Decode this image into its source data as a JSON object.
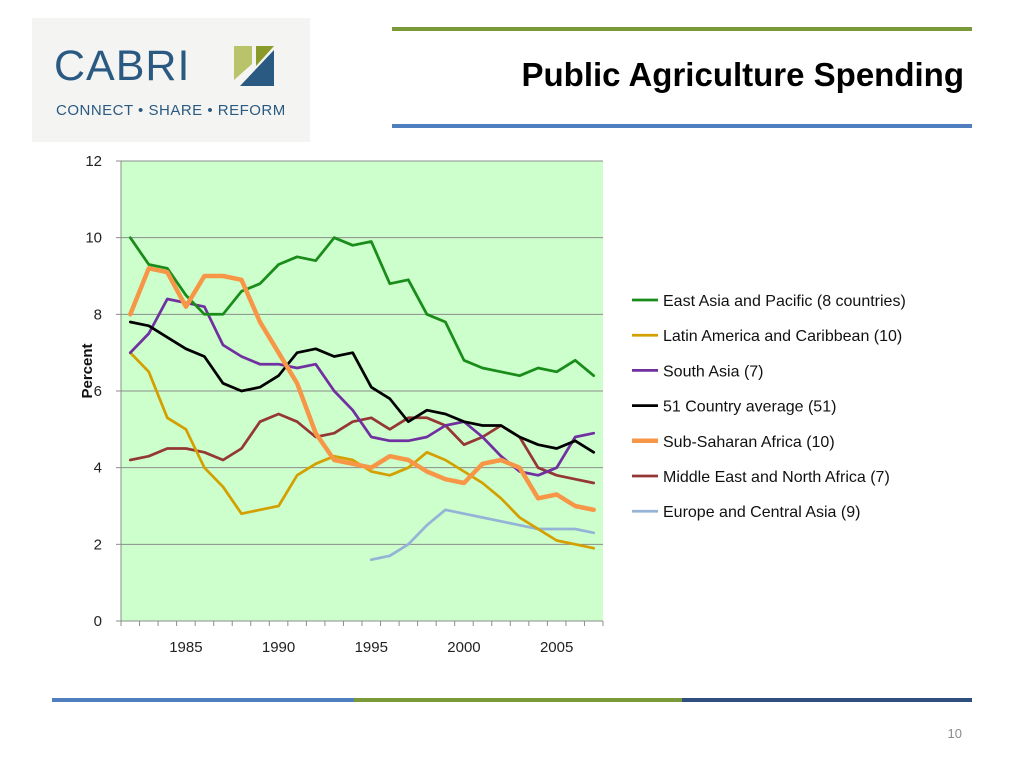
{
  "slide": {
    "title": "Public Agriculture Spending",
    "page_number": "10"
  },
  "logo": {
    "name": "CABRI",
    "tagline": "CONNECT • SHARE • REFORM"
  },
  "colors": {
    "top_rule_green": "#7a9a3a",
    "top_rule_blue": "#4f7fbf",
    "bottom_rule_blue": "#4f7fbf",
    "bottom_rule_green": "#7a9a3a",
    "bottom_rule_navy": "#2f4f7f",
    "plot_background": "#ccffcc"
  },
  "chart_data": {
    "type": "line",
    "ylabel": "Percent",
    "xlabel": "",
    "ylim": [
      0,
      12
    ],
    "xlim": [
      1982,
      2007
    ],
    "y_ticks": [
      "0",
      "2",
      "4",
      "6",
      "8",
      "10",
      "12"
    ],
    "x_ticks": [
      "1985",
      "1990",
      "1995",
      "2000",
      "2005"
    ],
    "grid": "horizontal",
    "legend_position": "right",
    "series": [
      {
        "name": "East Asia and Pacific (8 countries)",
        "color": "#1a8c1a",
        "x": [
          1982,
          1983,
          1984,
          1985,
          1986,
          1987,
          1988,
          1989,
          1990,
          1991,
          1992,
          1993,
          1994,
          1995,
          1996,
          1997,
          1998,
          1999,
          2000,
          2001,
          2002,
          2003,
          2004,
          2005,
          2006,
          2007
        ],
        "values": [
          10,
          9.3,
          9.2,
          8.5,
          8.0,
          8.0,
          8.6,
          8.8,
          9.3,
          9.5,
          9.4,
          10.0,
          9.8,
          9.9,
          8.8,
          8.9,
          8.0,
          7.8,
          6.8,
          6.6,
          6.5,
          6.4,
          6.6,
          6.5,
          6.8,
          6.4
        ]
      },
      {
        "name": "Latin America and Caribbean (10)",
        "color": "#d4a000",
        "x": [
          1982,
          1983,
          1984,
          1985,
          1986,
          1987,
          1988,
          1989,
          1990,
          1991,
          1992,
          1993,
          1994,
          1995,
          1996,
          1997,
          1998,
          1999,
          2000,
          2001,
          2002,
          2003,
          2004,
          2005,
          2006,
          2007
        ],
        "values": [
          7.0,
          6.5,
          5.3,
          5.0,
          4.0,
          3.5,
          2.8,
          2.9,
          3.0,
          3.8,
          4.1,
          4.3,
          4.2,
          3.9,
          3.8,
          4.0,
          4.4,
          4.2,
          3.9,
          3.6,
          3.2,
          2.7,
          2.4,
          2.1,
          2.0,
          1.9
        ]
      },
      {
        "name": "South Asia (7)",
        "color": "#7030a0",
        "x": [
          1982,
          1983,
          1984,
          1985,
          1986,
          1987,
          1988,
          1989,
          1990,
          1991,
          1992,
          1993,
          1994,
          1995,
          1996,
          1997,
          1998,
          1999,
          2000,
          2001,
          2002,
          2003,
          2004,
          2005,
          2006,
          2007
        ],
        "values": [
          7.0,
          7.5,
          8.4,
          8.3,
          8.2,
          7.2,
          6.9,
          6.7,
          6.7,
          6.6,
          6.7,
          6.0,
          5.5,
          4.8,
          4.7,
          4.7,
          4.8,
          5.1,
          5.2,
          4.8,
          4.3,
          3.9,
          3.8,
          4.0,
          4.8,
          4.9
        ]
      },
      {
        "name": "51 Country average (51)",
        "color": "#000000",
        "x": [
          1982,
          1983,
          1984,
          1985,
          1986,
          1987,
          1988,
          1989,
          1990,
          1991,
          1992,
          1993,
          1994,
          1995,
          1996,
          1997,
          1998,
          1999,
          2000,
          2001,
          2002,
          2003,
          2004,
          2005,
          2006,
          2007
        ],
        "values": [
          7.8,
          7.7,
          7.4,
          7.1,
          6.9,
          6.2,
          6.0,
          6.1,
          6.4,
          7.0,
          7.1,
          6.9,
          7.0,
          6.1,
          5.8,
          5.2,
          5.5,
          5.4,
          5.2,
          5.1,
          5.1,
          4.8,
          4.6,
          4.5,
          4.7,
          4.4
        ]
      },
      {
        "name": "Sub-Saharan Africa (10)",
        "color": "#f79646",
        "x": [
          1982,
          1983,
          1984,
          1985,
          1986,
          1987,
          1988,
          1989,
          1990,
          1991,
          1992,
          1993,
          1994,
          1995,
          1996,
          1997,
          1998,
          1999,
          2000,
          2001,
          2002,
          2003,
          2004,
          2005,
          2006,
          2007
        ],
        "values": [
          8.0,
          9.2,
          9.1,
          8.2,
          9.0,
          9.0,
          8.9,
          7.8,
          7.0,
          6.2,
          4.9,
          4.2,
          4.1,
          4.0,
          4.3,
          4.2,
          3.9,
          3.7,
          3.6,
          4.1,
          4.2,
          4.0,
          3.2,
          3.3,
          3.0,
          2.9
        ]
      },
      {
        "name": "Middle East and North Africa (7)",
        "color": "#953735",
        "x": [
          1982,
          1983,
          1984,
          1985,
          1986,
          1987,
          1988,
          1989,
          1990,
          1991,
          1992,
          1993,
          1994,
          1995,
          1996,
          1997,
          1998,
          1999,
          2000,
          2001,
          2002,
          2003,
          2004,
          2005,
          2006,
          2007
        ],
        "values": [
          4.2,
          4.3,
          4.5,
          4.5,
          4.4,
          4.2,
          4.5,
          5.2,
          5.4,
          5.2,
          4.8,
          4.9,
          5.2,
          5.3,
          5.0,
          5.3,
          5.3,
          5.1,
          4.6,
          4.8,
          5.1,
          4.8,
          4.0,
          3.8,
          3.7,
          3.6
        ]
      },
      {
        "name": "Europe and Central Asia (9)",
        "color": "#95b3d7",
        "x": [
          1995,
          1996,
          1997,
          1998,
          1999,
          2000,
          2001,
          2002,
          2003,
          2004,
          2005,
          2006,
          2007
        ],
        "values": [
          1.6,
          1.7,
          2.0,
          2.5,
          2.9,
          2.8,
          2.7,
          2.6,
          2.5,
          2.4,
          2.4,
          2.4,
          2.3
        ]
      }
    ]
  }
}
